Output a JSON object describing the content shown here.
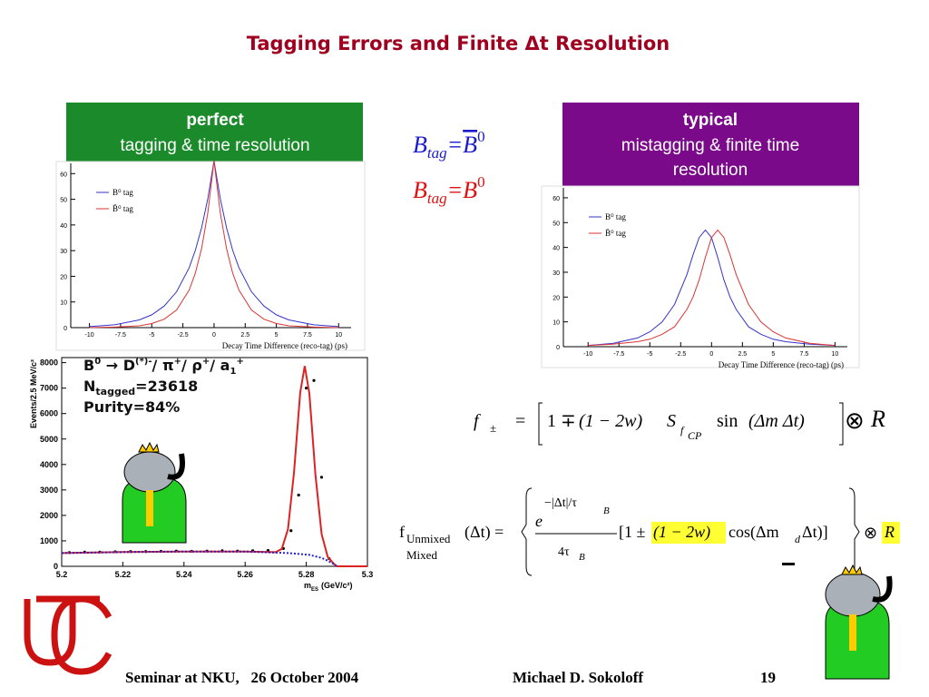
{
  "title": "Tagging Errors and Finite Δt Resolution",
  "boxes": [
    {
      "heading": "perfect",
      "lines": [
        "tagging & time resolution"
      ]
    },
    {
      "heading": "typical",
      "lines": [
        "mistagging & finite time",
        "resolution"
      ]
    }
  ],
  "btag": [
    [
      "B",
      "tag",
      "=",
      "B",
      "0"
    ],
    [
      "B",
      "tag",
      "=",
      "B",
      "0"
    ]
  ],
  "annotation": [
    [
      "B",
      "0",
      " → D",
      "(*)-",
      "/ π",
      "+",
      "/ ρ",
      "+",
      "/ a",
      "1",
      "+"
    ],
    [
      "N",
      "tagged",
      "=23618"
    ],
    [
      "Purity=84%"
    ]
  ],
  "formula1": [
    "f",
    "±",
    "=",
    "1",
    "∓",
    "(1 − 2w)",
    "S",
    "f",
    "CP",
    "sin",
    "(Δm Δt)",
    "⊗",
    "R"
  ],
  "formula2": [
    "f",
    "Unmixed",
    "Mixed",
    "(Δt) =",
    "e",
    "−|Δt|/τ",
    "B",
    "4τ",
    "B",
    "[1 ±",
    "(1 − 2w)",
    "cos(Δm",
    "d",
    "Δt)]",
    "⊗",
    "R"
  ],
  "footer": {
    "left": "Seminar at NKU,   26 October 2004",
    "center": "Michael D. Sokoloff",
    "page": "19"
  },
  "chart_data": [
    {
      "type": "line",
      "xlabel": "Decay Time Difference (reco-tag) (ps)",
      "legend": "upper left",
      "x": [
        -10,
        -8,
        -6,
        -5,
        -4,
        -3,
        -2,
        -1.5,
        -1,
        -0.5,
        0,
        0.5,
        1,
        1.5,
        2,
        3,
        4,
        5,
        6,
        8,
        10
      ],
      "series": [
        {
          "name": "B⁰ tag",
          "color": "#3333cc",
          "values": [
            0.4,
            1.1,
            3,
            5,
            8.4,
            14,
            23.3,
            30.1,
            38.9,
            50.3,
            65,
            50.3,
            38.9,
            30.1,
            23.3,
            14,
            8.4,
            5,
            3,
            1.1,
            0.4
          ]
        },
        {
          "name": "B̄⁰ tag",
          "color": "#dd3333",
          "values": [
            0,
            0.2,
            0.7,
            1.6,
            3.3,
            6.9,
            14.6,
            21.2,
            30.8,
            44.8,
            65,
            44.8,
            30.8,
            21.2,
            14.6,
            6.9,
            3.3,
            1.6,
            0.7,
            0.2,
            0
          ]
        }
      ],
      "xlim": [
        -11.5,
        11
      ],
      "ylim": [
        0,
        64
      ],
      "xticks": [
        -10,
        -7.5,
        -5,
        -2.5,
        0,
        2.5,
        5,
        7.5,
        10
      ],
      "yticks": [
        0,
        10,
        20,
        30,
        40,
        50,
        60
      ]
    },
    {
      "type": "line",
      "xlabel": "Decay Time Difference (reco-tag) (ps)",
      "legend": "upper left",
      "x": [
        -10,
        -8,
        -6,
        -5,
        -4,
        -3,
        -2,
        -1.5,
        -1,
        -0.5,
        0,
        0.5,
        1,
        1.5,
        2,
        3,
        4,
        5,
        6,
        8,
        10
      ],
      "series": [
        {
          "name": "B⁰ tag",
          "color": "#3333cc",
          "values": [
            0.5,
            1.3,
            3.5,
            6,
            10,
            17,
            29,
            37,
            44,
            47,
            44,
            36,
            27,
            20,
            15,
            8,
            5,
            3,
            2,
            1,
            0.5
          ]
        },
        {
          "name": "B̄⁰ tag",
          "color": "#dd3333",
          "values": [
            0.5,
            1,
            2,
            3,
            5,
            8,
            15,
            20,
            27,
            36,
            44,
            47,
            44,
            37,
            29,
            17,
            10,
            6,
            3.5,
            1.3,
            0.5
          ]
        }
      ],
      "xlim": [
        -12,
        11
      ],
      "ylim": [
        0,
        64
      ],
      "xticks": [
        -10,
        -7.5,
        -5,
        -2.5,
        0,
        2.5,
        5,
        7.5,
        10
      ],
      "yticks": [
        0,
        10,
        20,
        30,
        40,
        50,
        60
      ]
    },
    {
      "type": "line",
      "xlabel": "m",
      "xlabel_sub": "ES",
      "xlabel_unit": "(GeV/c²)",
      "ylabel": "Events/2.5 MeV/c²",
      "series": [
        {
          "style": "points",
          "color": "#000000",
          "x": [
            5.2025,
            5.2075,
            5.2125,
            5.2175,
            5.2225,
            5.2275,
            5.2325,
            5.2375,
            5.2425,
            5.2475,
            5.2525,
            5.2575,
            5.2625,
            5.2675,
            5.2725,
            5.275,
            5.2775,
            5.28,
            5.2825,
            5.285,
            5.2875
          ],
          "values": [
            540,
            560,
            560,
            570,
            580,
            580,
            590,
            600,
            590,
            600,
            610,
            600,
            610,
            620,
            700,
            1400,
            2800,
            7000,
            7300,
            3500,
            300
          ]
        },
        {
          "style": "line",
          "color": "#dd2222",
          "x": [
            5.2,
            5.22,
            5.24,
            5.26,
            5.27,
            5.272,
            5.274,
            5.276,
            5.278,
            5.2795,
            5.281,
            5.283,
            5.285,
            5.287,
            5.289,
            5.29,
            5.3
          ],
          "values": [
            520,
            560,
            580,
            580,
            555,
            686,
            1454,
            3697,
            6823,
            7870,
            6793,
            3597,
            1264,
            376,
            105,
            0,
            0
          ]
        },
        {
          "style": "dotted",
          "color": "#2222cc",
          "x": [
            5.2,
            5.22,
            5.24,
            5.26,
            5.27,
            5.274,
            5.278,
            5.281,
            5.285,
            5.287,
            5.289,
            5.29
          ],
          "values": [
            520,
            560,
            580,
            580,
            540,
            520,
            480,
            450,
            330,
            220,
            90,
            0
          ]
        }
      ],
      "xlim": [
        5.2,
        5.3
      ],
      "ylim": [
        0,
        8200
      ],
      "xticks": [
        5.2,
        5.22,
        5.24,
        5.26,
        5.28,
        5.3
      ],
      "yticks": [
        0,
        1000,
        2000,
        3000,
        4000,
        5000,
        6000,
        7000,
        8000
      ]
    }
  ]
}
